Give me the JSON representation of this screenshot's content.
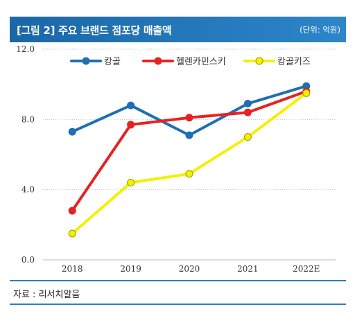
{
  "header": {
    "title": "[그림 2] 주요 브랜드 점포당 매출액",
    "unit": "(단위: 억원)"
  },
  "source": "자료 : 리서치알음",
  "colors": {
    "header_bg": "#1f6fb2",
    "divider": "#2e7dbf"
  },
  "chart_data": {
    "type": "line",
    "title": "",
    "xlabel": "",
    "ylabel": "",
    "categories": [
      "2018",
      "2019",
      "2020",
      "2021",
      "2022E"
    ],
    "ylim": [
      0,
      12
    ],
    "yticks": [
      "0.0",
      "4.0",
      "8.0",
      "12.0"
    ],
    "grid": "horizontal-dotted",
    "legend_position": "top",
    "series": [
      {
        "name": "캉골",
        "values": [
          7.3,
          8.8,
          7.1,
          8.9,
          9.9
        ],
        "color": "#1f6fb2"
      },
      {
        "name": "헬렌카민스키",
        "values": [
          2.8,
          7.7,
          8.1,
          8.4,
          9.6
        ],
        "color": "#e52222"
      },
      {
        "name": "캉골키즈",
        "values": [
          1.5,
          4.4,
          4.9,
          7.0,
          9.5
        ],
        "color": "#f4f000"
      }
    ]
  }
}
